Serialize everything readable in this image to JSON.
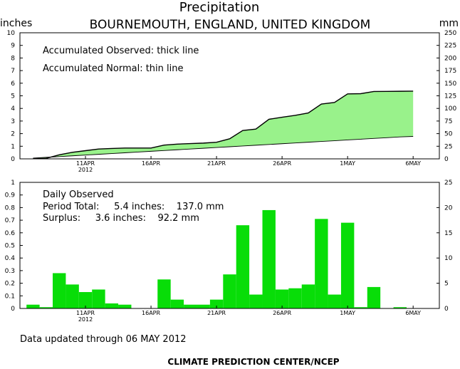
{
  "title": "Precipitation",
  "subtitle": "BOURNEMOUTH, ENGLAND, UNITED KINGDOM",
  "unit_left": "inches",
  "unit_right": "mm",
  "colors": {
    "observed_fill": "#99f28b",
    "bars": "#08dd08",
    "lines": "#000000"
  },
  "top_annotations": [
    "Accumulated Observed: thick line",
    "Accumulated Normal: thin line"
  ],
  "bottom_annotations": {
    "label": "Daily Observed",
    "period_total": "Period Total:     5.4 inches:    137.0 mm",
    "surplus": "Surplus:     3.6 inches:    92.2 mm"
  },
  "footer": "Data updated through 06 MAY 2012",
  "credit": "CLIMATE PREDICTION CENTER/NCEP",
  "chart_data": [
    {
      "type": "area",
      "name": "accumulated",
      "x_dates": [
        "2012-04-07",
        "2012-04-08",
        "2012-04-09",
        "2012-04-10",
        "2012-04-11",
        "2012-04-12",
        "2012-04-13",
        "2012-04-14",
        "2012-04-15",
        "2012-04-16",
        "2012-04-17",
        "2012-04-18",
        "2012-04-19",
        "2012-04-20",
        "2012-04-21",
        "2012-04-22",
        "2012-04-23",
        "2012-04-24",
        "2012-04-25",
        "2012-04-26",
        "2012-04-27",
        "2012-04-28",
        "2012-04-29",
        "2012-04-30",
        "2012-05-01",
        "2012-05-02",
        "2012-05-03",
        "2012-05-04",
        "2012-05-05",
        "2012-05-06"
      ],
      "x_tick_labels": [
        "11APR\n2012",
        "16APR",
        "21APR",
        "26APR",
        "1MAY",
        "6MAY"
      ],
      "y_left_ticks": [
        0,
        1,
        2,
        3,
        4,
        5,
        6,
        7,
        8,
        9,
        10
      ],
      "y_right_ticks": [
        0,
        25,
        50,
        75,
        100,
        125,
        150,
        175,
        200,
        225,
        250
      ],
      "ylim_inches": [
        0,
        10
      ],
      "ylim_mm": [
        0,
        250
      ],
      "series": [
        {
          "name": "Accumulated Observed",
          "values": [
            0.03,
            0.04,
            0.32,
            0.52,
            0.65,
            0.78,
            0.82,
            0.86,
            0.86,
            0.86,
            1.09,
            1.17,
            1.21,
            1.25,
            1.32,
            1.59,
            2.25,
            2.36,
            3.14,
            3.3,
            3.45,
            3.64,
            4.35,
            4.47,
            5.15,
            5.17,
            5.34,
            5.35,
            5.36,
            5.37
          ]
        },
        {
          "name": "Accumulated Normal",
          "values": [
            0.06,
            0.12,
            0.18,
            0.24,
            0.3,
            0.36,
            0.42,
            0.48,
            0.54,
            0.6,
            0.66,
            0.72,
            0.78,
            0.84,
            0.9,
            0.96,
            1.02,
            1.08,
            1.14,
            1.2,
            1.26,
            1.32,
            1.38,
            1.44,
            1.5,
            1.56,
            1.62,
            1.68,
            1.74,
            1.78
          ]
        }
      ]
    },
    {
      "type": "bar",
      "name": "daily",
      "x_dates": [
        "2012-04-07",
        "2012-04-08",
        "2012-04-09",
        "2012-04-10",
        "2012-04-11",
        "2012-04-12",
        "2012-04-13",
        "2012-04-14",
        "2012-04-15",
        "2012-04-16",
        "2012-04-17",
        "2012-04-18",
        "2012-04-19",
        "2012-04-20",
        "2012-04-21",
        "2012-04-22",
        "2012-04-23",
        "2012-04-24",
        "2012-04-25",
        "2012-04-26",
        "2012-04-27",
        "2012-04-28",
        "2012-04-29",
        "2012-04-30",
        "2012-05-01",
        "2012-05-02",
        "2012-05-03",
        "2012-05-04",
        "2012-05-05",
        "2012-05-06"
      ],
      "x_tick_labels": [
        "11APR\n2012",
        "16APR",
        "21APR",
        "26APR",
        "1MAY",
        "6MAY"
      ],
      "y_left_ticks": [
        0,
        0.1,
        0.2,
        0.3,
        0.4,
        0.5,
        0.6,
        0.7,
        0.8,
        0.9,
        1
      ],
      "y_right_ticks": [
        0,
        5,
        10,
        15,
        20,
        25
      ],
      "ylim_inches": [
        0,
        1
      ],
      "ylim_mm": [
        0,
        25
      ],
      "series": [
        {
          "name": "Daily Observed",
          "values": [
            0.03,
            0.01,
            0.28,
            0.19,
            0.13,
            0.15,
            0.04,
            0.03,
            0,
            0,
            0.23,
            0.07,
            0.03,
            0.03,
            0.07,
            0.27,
            0.66,
            0.11,
            0.78,
            0.15,
            0.16,
            0.19,
            0.71,
            0.11,
            0.68,
            0.01,
            0.17,
            0,
            0.01,
            0
          ]
        }
      ]
    }
  ]
}
